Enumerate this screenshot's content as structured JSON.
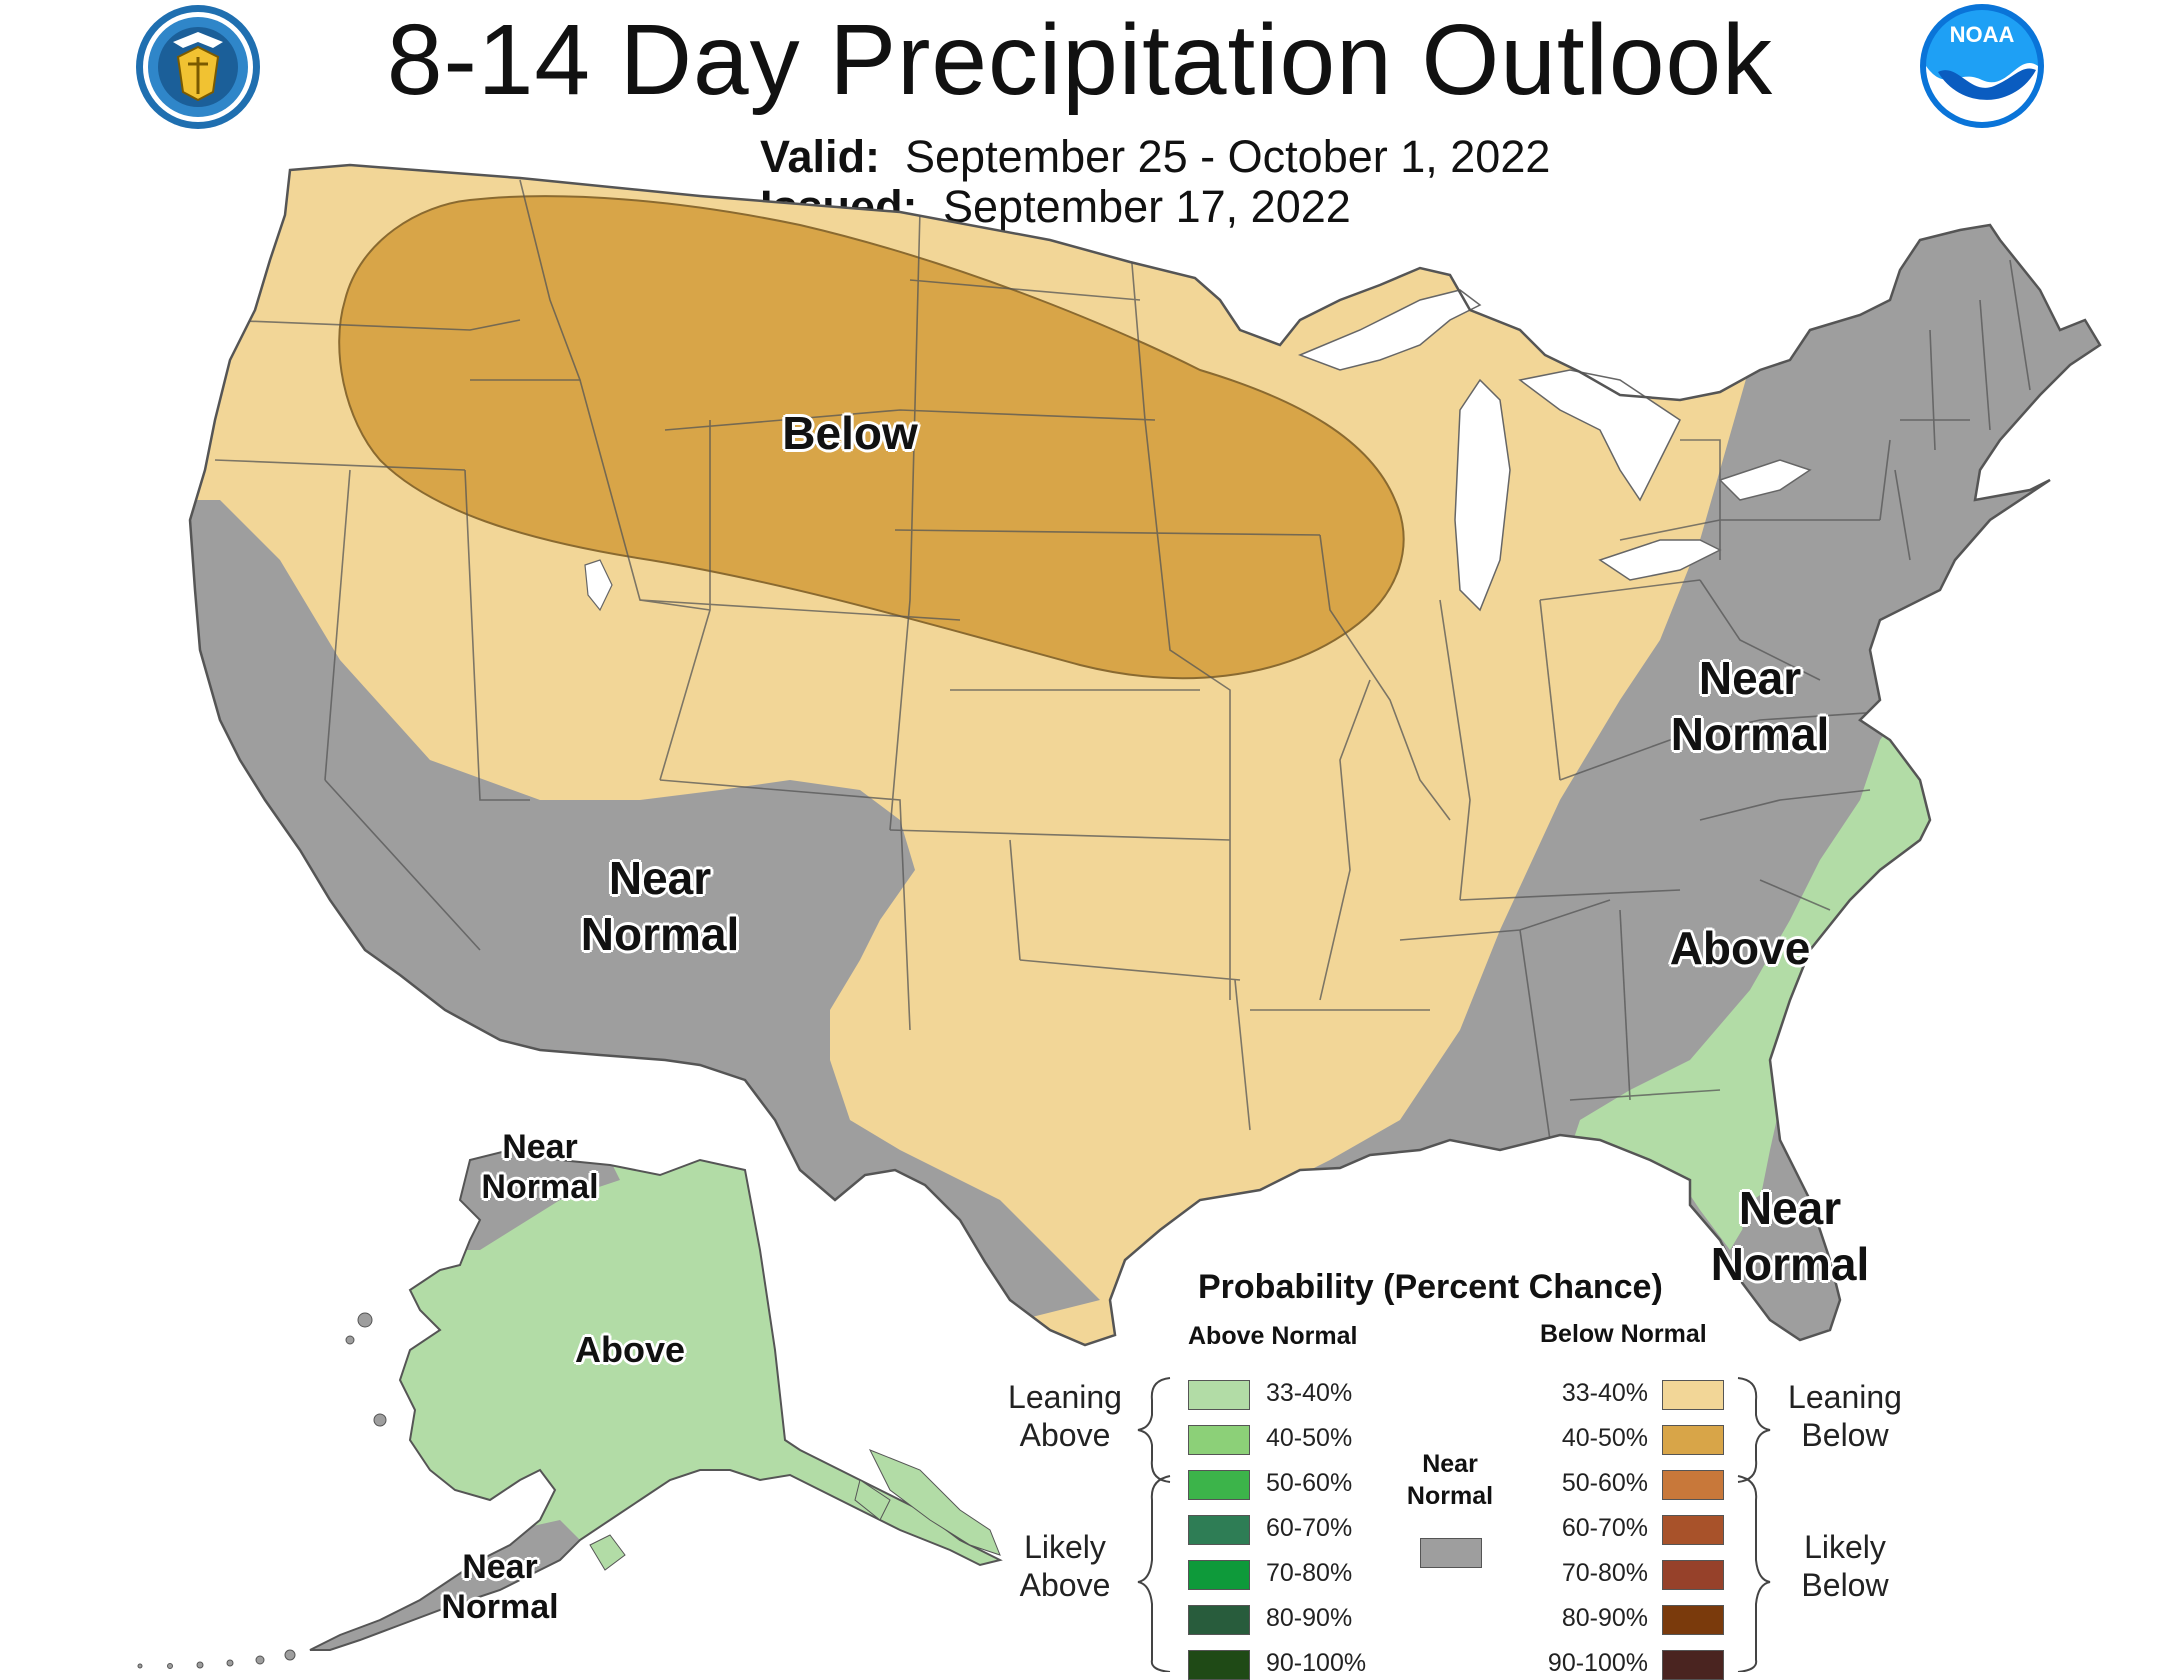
{
  "title": "8-14 Day Precipitation Outlook",
  "valid_label": "Valid:",
  "valid_value": "September 25 - October 1, 2022",
  "issued_label": "Issued:",
  "issued_value": "September 17, 2022",
  "logos": {
    "left": "department-of-commerce-seal",
    "right": "noaa-logo",
    "noaa_text": "NOAA"
  },
  "colors": {
    "near_normal": "#9e9e9e",
    "below_33_40": "#f2d697",
    "below_40_50": "#d8a548",
    "above_33_40": "#b2dca6",
    "background": "#ffffff",
    "water": "#ffffff"
  },
  "map_labels": {
    "below_north": "Below",
    "near_normal_west_1": "Near",
    "near_normal_west_2": "Normal",
    "near_normal_east_1": "Near",
    "near_normal_east_2": "Normal",
    "above_southeast": "Above",
    "near_normal_florida_1": "Near",
    "near_normal_florida_2": "Normal",
    "alaska_north_1": "Near",
    "alaska_north_2": "Normal",
    "alaska_above": "Above",
    "alaska_south_1": "Near",
    "alaska_south_2": "Normal"
  },
  "legend": {
    "title": "Probability (Percent Chance)",
    "above_header": "Above Normal",
    "below_header": "Below Normal",
    "near_header_1": "Near",
    "near_header_2": "Normal",
    "leaning_above_1": "Leaning",
    "leaning_above_2": "Above",
    "likely_above_1": "Likely",
    "likely_above_2": "Above",
    "leaning_below_1": "Leaning",
    "leaning_below_2": "Below",
    "likely_below_1": "Likely",
    "likely_below_2": "Below",
    "above": [
      {
        "range": "33-40%",
        "color": "#b2dca6"
      },
      {
        "range": "40-50%",
        "color": "#8cd078"
      },
      {
        "range": "50-60%",
        "color": "#3cb44a"
      },
      {
        "range": "60-70%",
        "color": "#2e7d55"
      },
      {
        "range": "70-80%",
        "color": "#0e9a3a"
      },
      {
        "range": "80-90%",
        "color": "#285c3c"
      },
      {
        "range": "90-100%",
        "color": "#1f4a16"
      }
    ],
    "below": [
      {
        "range": "33-40%",
        "color": "#f2d697"
      },
      {
        "range": "40-50%",
        "color": "#d8a548"
      },
      {
        "range": "50-60%",
        "color": "#c8783a"
      },
      {
        "range": "60-70%",
        "color": "#a8522a"
      },
      {
        "range": "70-80%",
        "color": "#96412a"
      },
      {
        "range": "80-90%",
        "color": "#7a3a0c"
      },
      {
        "range": "90-100%",
        "color": "#4a2420"
      }
    ],
    "near_color": "#9e9e9e"
  }
}
